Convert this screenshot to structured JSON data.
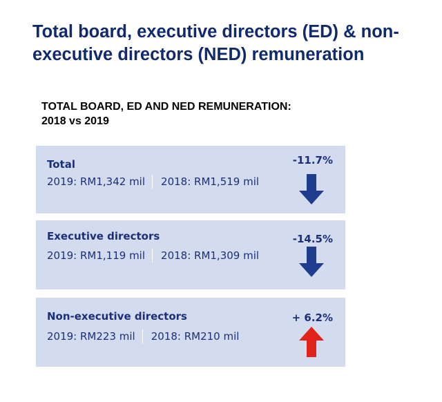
{
  "page": {
    "title": "Total board, executive directors (ED) & non-executive directors (NED) remuneration",
    "section_heading_line1": "TOTAL BOARD, ED AND NED REMUNERATION:",
    "section_heading_line2": "2018 vs 2019"
  },
  "cards": [
    {
      "label": "Total",
      "value_2019": "2019: RM1,342 mil",
      "value_2018": "2018: RM1,519 mil",
      "change": "-11.7%",
      "direction": "down",
      "arrow_color": "#1f3c8f",
      "arrow_icon": "down-arrow-icon"
    },
    {
      "label": "Executive directors",
      "value_2019": "2019: RM1,119 mil",
      "value_2018": "2018: RM1,309 mil",
      "change": "-14.5%",
      "direction": "down",
      "arrow_color": "#1f3c8f",
      "arrow_icon": "down-arrow-icon"
    },
    {
      "label": "Non-executive directors",
      "value_2019": "2019: RM223 mil",
      "value_2018": "2018: RM210 mil",
      "change": "+ 6.2%",
      "direction": "up",
      "arrow_color": "#e2231a",
      "arrow_icon": "up-arrow-icon"
    }
  ],
  "colors": {
    "title": "#102a6b",
    "card_background": "#d3dbee",
    "card_text": "#1c2f79"
  }
}
